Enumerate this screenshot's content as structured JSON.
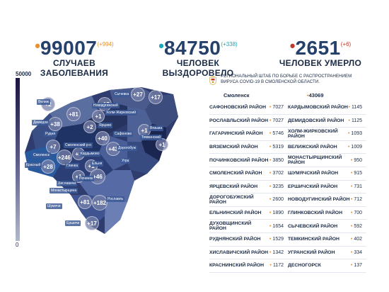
{
  "stats": [
    {
      "value": "99007",
      "delta": "(+994)",
      "caption": "СЛУЧАЕВ ЗАБОЛЕВАНИЯ",
      "dot_color": "#e8912f",
      "delta_color": "#e8912f"
    },
    {
      "value": "84750",
      "delta": "(+338)",
      "caption": "ЧЕЛОВЕК ВЫЗДОРОВЕЛО",
      "dot_color": "#1ea6b8",
      "delta_color": "#1ea6b8"
    },
    {
      "value": "2651",
      "delta": "(+6)",
      "caption": "ЧЕЛОВЕК УМЕРЛО",
      "dot_color": "#c0392b",
      "delta_color": "#c0392b"
    }
  ],
  "scale": {
    "max": "50000",
    "min": "0"
  },
  "map_increments": [
    "+2",
    "+81",
    "+17",
    "+17",
    "+27",
    "+1",
    "+38",
    "+2",
    "+1",
    "+1",
    "+43",
    "+40",
    "+7",
    "+1",
    "+246",
    "+1",
    "+28",
    "+1",
    "+46",
    "+81",
    "+182",
    "+17"
  ],
  "map_labels": [
    "Сычевка",
    "Новодугинский",
    "Темкинский",
    "Холм-Жирковский",
    "Ярцево",
    "Велиж",
    "Демидов",
    "Рудня",
    "Сафоново",
    "Вязьма",
    "Дорогобуж",
    "Смоленск",
    "Кардымово",
    "Смоленский р-н",
    "Глинка",
    "Ельня",
    "Угра",
    "Красный",
    "Починок",
    "Монастырщина",
    "Рославль",
    "Шумячи",
    "Ершичи",
    "Хиславичи"
  ],
  "header": {
    "text": "РЕГИОНАЛЬНЫЙ ШТАБ ПО БОРЬБЕ С РАСПРОСТРАНЕНИЕМ ВИРУСА COVID-19 В СМОЛЕНСКОЙ ОБЛАСТИ.",
    "city": "Смоленск",
    "city_value": "43069"
  },
  "districts_left": [
    {
      "name": "САФОНОВСКИЙ РАЙОН",
      "value": "7027"
    },
    {
      "name": "РОСЛАВЛЬСКИЙ РАЙОН",
      "value": "7027"
    },
    {
      "name": "ГАГАРИНСКИЙ РАЙОН",
      "value": "5746"
    },
    {
      "name": "ВЯЗЕМСКИЙ РАЙОН",
      "value": "5319"
    },
    {
      "name": "ПОЧИНКОВСКИЙ РАЙОН",
      "value": "3850"
    },
    {
      "name": "СМОЛЕНСКИЙ РАЙОН",
      "value": "3702"
    },
    {
      "name": "ЯРЦЕВСКИЙ РАЙОН",
      "value": "3235"
    },
    {
      "name": "ДОРОГОБУЖСКИЙ РАЙОН",
      "value": "2600"
    },
    {
      "name": "ЕЛЬНИНСКИЙ РАЙОН",
      "value": "1890"
    },
    {
      "name": "ДУХОВЩИНСКИЙ РАЙОН",
      "value": "1654"
    },
    {
      "name": "РУДНЯНСКИЙ РАЙОН",
      "value": "1529"
    },
    {
      "name": "ХИСЛАВИЧСКИЙ РАЙОН",
      "value": "1342"
    },
    {
      "name": "КРАСНИНСКИЙ РАЙОН",
      "value": "1172"
    }
  ],
  "districts_right": [
    {
      "name": "КАРДЫМОВСКИЙ РАЙОН",
      "value": "1145"
    },
    {
      "name": "ДЕМИДОВСКИЙ РАЙОН",
      "value": "1125"
    },
    {
      "name": "ХОЛМ-ЖИРКОВСКИЙ РАЙОН",
      "value": "1093"
    },
    {
      "name": "ВЕЛИЖСКИЙ РАЙОН",
      "value": "1009"
    },
    {
      "name": "МОНАСТЫРЩИНСКИЙ РАЙОН",
      "value": "950"
    },
    {
      "name": "ШУМЯЧСКИЙ РАЙОН",
      "value": "915"
    },
    {
      "name": "ЕРШИЧСКИЙ РАЙОН",
      "value": "731"
    },
    {
      "name": "НОВОДУГИНСКИЙ РАЙОН",
      "value": "712"
    },
    {
      "name": "ГЛИНКОВСКИЙ РАЙОН",
      "value": "700"
    },
    {
      "name": "СЫЧЕВСКИЙ РАЙОН",
      "value": "592"
    },
    {
      "name": "ТЕМКИНСКИЙ РАЙОН",
      "value": "402"
    },
    {
      "name": "УГРАНСКИЙ РАЙОН",
      "value": "334"
    },
    {
      "name": "ДЕСНОГОРСК",
      "value": "137"
    }
  ]
}
